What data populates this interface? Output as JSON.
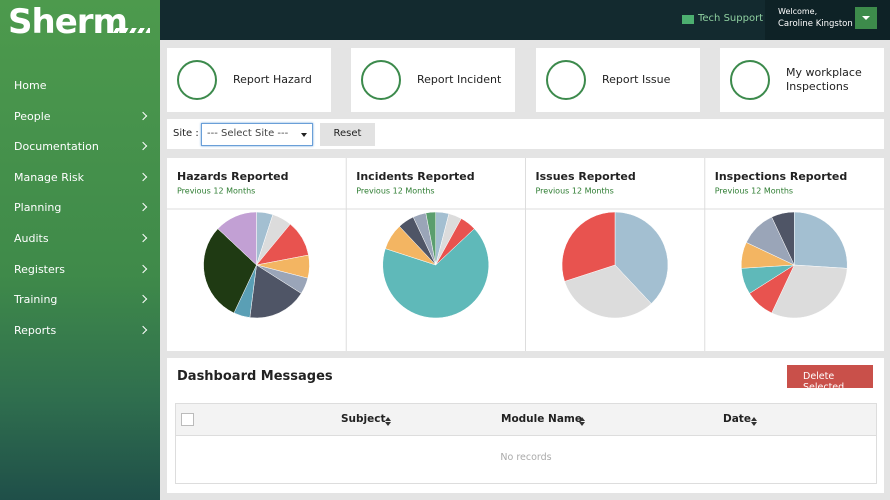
{
  "brand": "Sherm",
  "topbar": {
    "support": "Tech Support",
    "welcome": "Welcome,",
    "user": "Caroline Kingston"
  },
  "nav": [
    "Home",
    "People",
    "Documentation",
    "Manage Risk",
    "Planning",
    "Audits",
    "Registers",
    "Training",
    "Reports"
  ],
  "actions": [
    "Report Hazard",
    "Report Incident",
    "Report Issue",
    "My workplace Inspections"
  ],
  "filter": {
    "label": "Site :",
    "select": "--- Select Site ---",
    "reset": "Reset"
  },
  "chart_data": [
    {
      "type": "pie",
      "title": "Hazards Reported",
      "subtitle": "Previous 12 Months",
      "values": [
        5,
        6,
        11,
        7,
        5,
        18,
        5,
        30,
        13
      ],
      "colors": [
        "#a3bfd1",
        "#dcdcdc",
        "#e8534f",
        "#f3b562",
        "#9aa5b8",
        "#4f5566",
        "#5a9fb5",
        "#1f3a13",
        "#c2a0d4"
      ]
    },
    {
      "type": "pie",
      "title": "Incidents Reported",
      "subtitle": "Previous 12 Months",
      "values": [
        4,
        4,
        5,
        67,
        8,
        5,
        4,
        3
      ],
      "colors": [
        "#a3bfd1",
        "#dcdcdc",
        "#e8534f",
        "#5fb9b9",
        "#f3b562",
        "#4f5566",
        "#9aa5b8",
        "#5a9e6e"
      ]
    },
    {
      "type": "pie",
      "title": "Issues Reported",
      "subtitle": "Previous 12 Months",
      "values": [
        38,
        32,
        30
      ],
      "colors": [
        "#a3bfd1",
        "#dcdcdc",
        "#e8534f"
      ]
    },
    {
      "type": "pie",
      "title": "Inspections Reported",
      "subtitle": "Previous 12 Months",
      "values": [
        26,
        31,
        9,
        8,
        8,
        11,
        7
      ],
      "colors": [
        "#a3bfd1",
        "#dcdcdc",
        "#e8534f",
        "#5fb9b9",
        "#f3b562",
        "#9aa5b8",
        "#4f5566"
      ]
    }
  ],
  "messages": {
    "title": "Dashboard Messages",
    "delete": "Delete Selected",
    "columns": [
      "Subject",
      "Module Name",
      "Date"
    ],
    "empty": "No records"
  }
}
